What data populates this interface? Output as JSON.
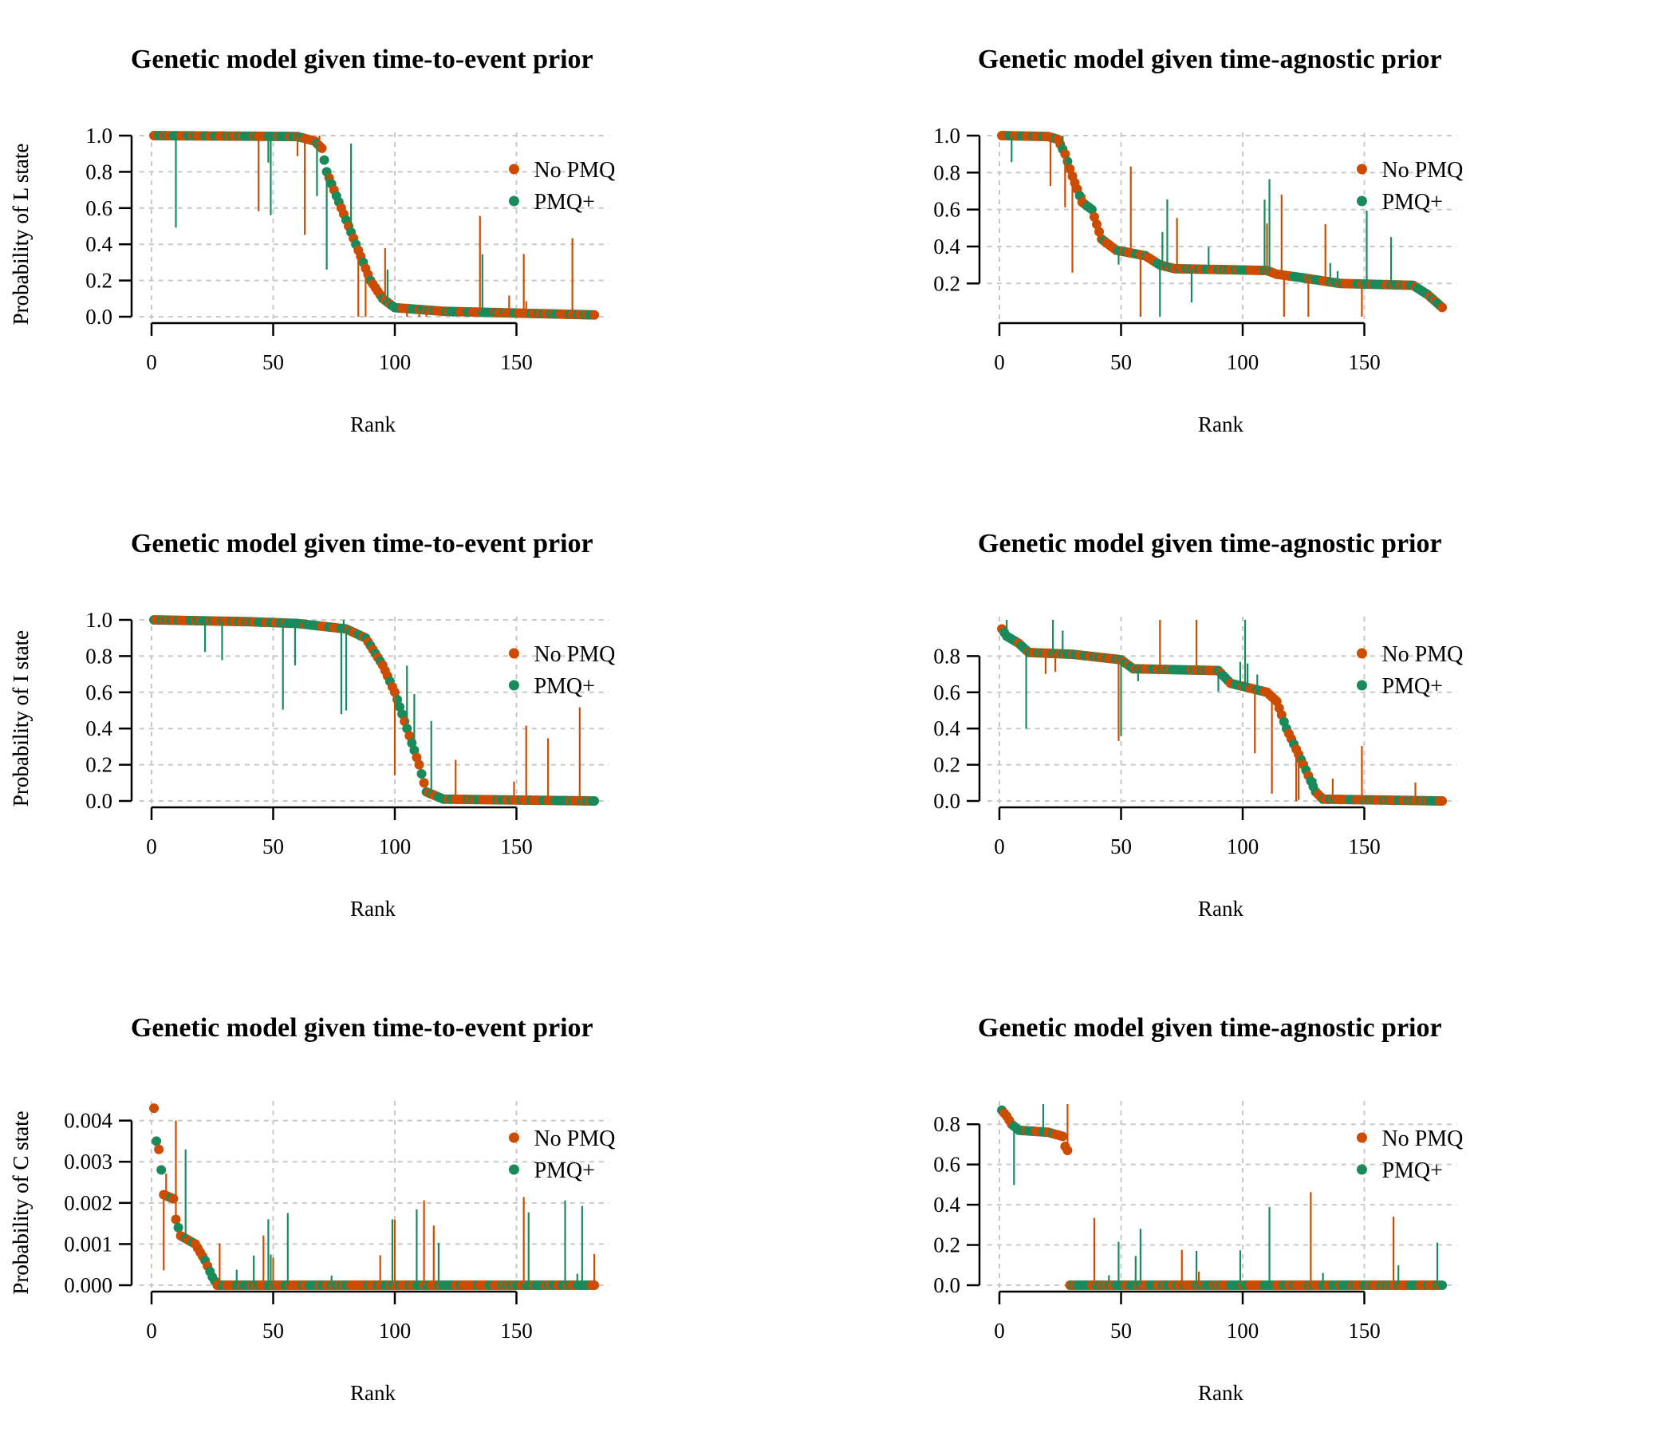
{
  "colors": {
    "no_pmq": "#cc4c02",
    "pmq_plus": "#1b8a5a",
    "grid": "#c8c8c8",
    "axis": "#000000"
  },
  "chart_data": [
    {
      "type": "scatter",
      "title": "Genetic model given time-to-event prior",
      "xlabel": "Rank",
      "ylabel": "Probability of L state",
      "xlim": [
        0,
        182
      ],
      "ylim": [
        0,
        1
      ],
      "xticks": [
        "0",
        "50",
        "100",
        "150"
      ],
      "yticks": [
        "0.0",
        "0.2",
        "0.4",
        "0.6",
        "0.8",
        "1.0"
      ],
      "grid": true,
      "legend_position": "top-right",
      "legend": [
        "No PMQ",
        "PMQ+"
      ],
      "curve_knots": [
        [
          1,
          1.0
        ],
        [
          60,
          0.995
        ],
        [
          67,
          0.97
        ],
        [
          70,
          0.93
        ],
        [
          72,
          0.8
        ],
        [
          78,
          0.6
        ],
        [
          84,
          0.4
        ],
        [
          90,
          0.2
        ],
        [
          95,
          0.1
        ],
        [
          100,
          0.05
        ],
        [
          120,
          0.03
        ],
        [
          150,
          0.02
        ],
        [
          182,
          0.01
        ]
      ],
      "series": [
        {
          "name": "No PMQ"
        },
        {
          "name": "PMQ+"
        }
      ]
    },
    {
      "type": "scatter",
      "title": "Genetic model given time-agnostic prior",
      "xlabel": "Rank",
      "ylabel": "Probability of L state",
      "xlim": [
        0,
        182
      ],
      "ylim": [
        0.02,
        1
      ],
      "xticks": [
        "0",
        "50",
        "100",
        "150"
      ],
      "yticks": [
        "0.2",
        "0.4",
        "0.6",
        "0.8",
        "1.0"
      ],
      "grid": true,
      "legend_position": "top-right",
      "legend": [
        "No PMQ",
        "PMQ+"
      ],
      "curve_knots": [
        [
          1,
          1.0
        ],
        [
          20,
          0.995
        ],
        [
          24,
          0.98
        ],
        [
          27,
          0.9
        ],
        [
          30,
          0.78
        ],
        [
          34,
          0.64
        ],
        [
          38,
          0.6
        ],
        [
          42,
          0.44
        ],
        [
          48,
          0.38
        ],
        [
          60,
          0.35
        ],
        [
          66,
          0.3
        ],
        [
          72,
          0.28
        ],
        [
          110,
          0.27
        ],
        [
          114,
          0.25
        ],
        [
          125,
          0.23
        ],
        [
          140,
          0.2
        ],
        [
          170,
          0.19
        ],
        [
          176,
          0.14
        ],
        [
          182,
          0.07
        ]
      ],
      "series": [
        {
          "name": "No PMQ"
        },
        {
          "name": "PMQ+"
        }
      ]
    },
    {
      "type": "scatter",
      "title": "Genetic model given time-to-event prior",
      "xlabel": "Rank",
      "ylabel": "Probability of I state",
      "xlim": [
        0,
        182
      ],
      "ylim": [
        0,
        1
      ],
      "xticks": [
        "0",
        "50",
        "100",
        "150"
      ],
      "yticks": [
        "0.0",
        "0.2",
        "0.4",
        "0.6",
        "0.8",
        "1.0"
      ],
      "grid": true,
      "legend_position": "top-right",
      "legend": [
        "No PMQ",
        "PMQ+"
      ],
      "curve_knots": [
        [
          1,
          1.0
        ],
        [
          40,
          0.99
        ],
        [
          60,
          0.98
        ],
        [
          80,
          0.95
        ],
        [
          88,
          0.9
        ],
        [
          95,
          0.75
        ],
        [
          100,
          0.6
        ],
        [
          105,
          0.4
        ],
        [
          110,
          0.2
        ],
        [
          113,
          0.05
        ],
        [
          120,
          0.01
        ],
        [
          182,
          0.0
        ]
      ],
      "series": [
        {
          "name": "No PMQ"
        },
        {
          "name": "PMQ+"
        }
      ]
    },
    {
      "type": "scatter",
      "title": "Genetic model given time-agnostic prior",
      "xlabel": "Rank",
      "ylabel": "Probability of I state",
      "xlim": [
        0,
        182
      ],
      "ylim": [
        0,
        1
      ],
      "xticks": [
        "0",
        "50",
        "100",
        "150"
      ],
      "yticks": [
        "0.0",
        "0.2",
        "0.4",
        "0.6",
        "0.8"
      ],
      "grid": true,
      "legend_position": "top-right",
      "legend": [
        "No PMQ",
        "PMQ+"
      ],
      "curve_knots": [
        [
          1,
          0.95
        ],
        [
          3,
          0.91
        ],
        [
          8,
          0.87
        ],
        [
          12,
          0.82
        ],
        [
          30,
          0.81
        ],
        [
          50,
          0.78
        ],
        [
          55,
          0.73
        ],
        [
          90,
          0.72
        ],
        [
          95,
          0.65
        ],
        [
          110,
          0.6
        ],
        [
          114,
          0.55
        ],
        [
          118,
          0.4
        ],
        [
          125,
          0.2
        ],
        [
          130,
          0.05
        ],
        [
          133,
          0.01
        ],
        [
          182,
          0.0
        ]
      ],
      "series": [
        {
          "name": "No PMQ"
        },
        {
          "name": "PMQ+"
        }
      ]
    },
    {
      "type": "scatter",
      "title": "Genetic model given time-to-event prior",
      "xlabel": "Rank",
      "ylabel": "Probability of C state",
      "xlim": [
        0,
        182
      ],
      "ylim": [
        0,
        0.0044
      ],
      "xticks": [
        "0",
        "50",
        "100",
        "150"
      ],
      "yticks": [
        "0.000",
        "0.001",
        "0.002",
        "0.003",
        "0.004"
      ],
      "grid": true,
      "legend_position": "top-right",
      "legend": [
        "No PMQ",
        "PMQ+"
      ],
      "curve_knots": [
        [
          1,
          0.0043
        ],
        [
          2,
          0.0035
        ],
        [
          3,
          0.0033
        ],
        [
          4,
          0.0028
        ],
        [
          5,
          0.0022
        ],
        [
          9,
          0.0021
        ],
        [
          10,
          0.0016
        ],
        [
          12,
          0.0012
        ],
        [
          18,
          0.001
        ],
        [
          22,
          0.0006
        ],
        [
          25,
          0.0002
        ],
        [
          27,
          0.0
        ],
        [
          182,
          0.0
        ]
      ],
      "series": [
        {
          "name": "No PMQ"
        },
        {
          "name": "PMQ+"
        }
      ]
    },
    {
      "type": "scatter",
      "title": "Genetic model given time-agnostic prior",
      "xlabel": "Rank",
      "ylabel": "Probability of C state",
      "xlim": [
        0,
        182
      ],
      "ylim": [
        0,
        0.9
      ],
      "xticks": [
        "0",
        "50",
        "100",
        "150"
      ],
      "yticks": [
        "0.0",
        "0.2",
        "0.4",
        "0.6",
        "0.8"
      ],
      "grid": true,
      "legend_position": "top-right",
      "legend": [
        "No PMQ",
        "PMQ+"
      ],
      "curve_knots": [
        [
          1,
          0.87
        ],
        [
          3,
          0.84
        ],
        [
          5,
          0.8
        ],
        [
          8,
          0.77
        ],
        [
          20,
          0.76
        ],
        [
          26,
          0.74
        ],
        [
          27,
          0.69
        ],
        [
          28,
          0.67
        ],
        [
          29,
          0.0
        ],
        [
          182,
          0.0
        ]
      ],
      "series": [
        {
          "name": "No PMQ"
        },
        {
          "name": "PMQ+"
        }
      ]
    }
  ]
}
